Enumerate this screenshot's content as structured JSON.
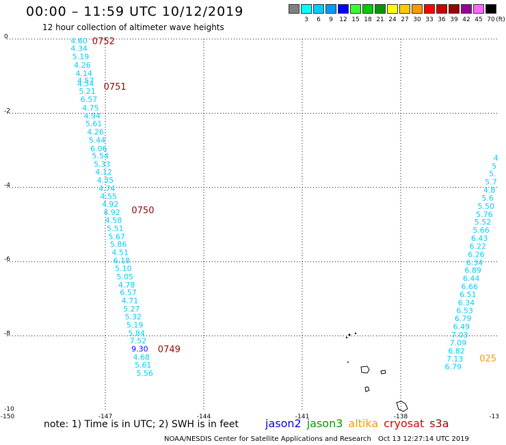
{
  "header": {
    "title": "00:00 – 11:59 UTC 10/12/2019",
    "subtitle": "12 hour collection of altimeter wave heights"
  },
  "colorbar": {
    "swatches": [
      {
        "label": "",
        "color": "#808080"
      },
      {
        "label": "3",
        "color": "#00ffff"
      },
      {
        "label": "6",
        "color": "#00ccff"
      },
      {
        "label": "9",
        "color": "#0099ff"
      },
      {
        "label": "12",
        "color": "#0000ff"
      },
      {
        "label": "15",
        "color": "#33ff33"
      },
      {
        "label": "18",
        "color": "#00cc00"
      },
      {
        "label": "21",
        "color": "#009900"
      },
      {
        "label": "24",
        "color": "#ffff00"
      },
      {
        "label": "27",
        "color": "#ffcc00"
      },
      {
        "label": "30",
        "color": "#ff9900"
      },
      {
        "label": "33",
        "color": "#ff0000"
      },
      {
        "label": "36",
        "color": "#cc0000"
      },
      {
        "label": "39",
        "color": "#990000"
      },
      {
        "label": "42",
        "color": "#990099"
      },
      {
        "label": "45",
        "color": "#ff66ff"
      },
      {
        "label": "70",
        "color": "#000000"
      }
    ],
    "unit": "(ft)"
  },
  "note": "note:  1) Time is in UTC;  2) SWH is in feet",
  "legend": [
    {
      "label": "jason2",
      "color": "#0000dd"
    },
    {
      "label": "jason3",
      "color": "#009900"
    },
    {
      "label": "altika",
      "color": "#ff9900"
    },
    {
      "label": "cryosat",
      "color": "#dd0000"
    },
    {
      "label": "s3a",
      "color": "#990000"
    }
  ],
  "credit": "NOAA/NESDIS Center for Satellite Applications and Research",
  "timestamp": "Oct 13 12:27:14 UTC 2019",
  "chart_data": {
    "type": "scatter",
    "title": "00:00 – 11:59 UTC 10/12/2019",
    "subtitle": "12 hour collection of altimeter wave heights",
    "xlabel": "",
    "ylabel": "",
    "xlim": [
      -150,
      -135
    ],
    "ylim": [
      -10,
      0
    ],
    "x_ticks": [
      "-150",
      "-147",
      "-144",
      "-141",
      "-138",
      "-13"
    ],
    "y_ticks": [
      "0",
      "-2",
      "-4",
      "-6",
      "-8",
      "-10"
    ],
    "grid": true,
    "series": [
      {
        "name": "s3a",
        "color": "#00ccff",
        "points": [
          {
            "x": -147.8,
            "y": -0.05,
            "label": "4.60"
          },
          {
            "x": -147.8,
            "y": -0.25,
            "label": "4.34"
          },
          {
            "x": -147.75,
            "y": -0.47,
            "label": "5.19"
          },
          {
            "x": -147.7,
            "y": -0.7,
            "label": "4.26"
          },
          {
            "x": -147.65,
            "y": -0.92,
            "label": "4.14"
          },
          {
            "x": -147.6,
            "y": -1.12,
            "label": "4.57"
          },
          {
            "x": -147.6,
            "y": -1.2,
            "label": "4.54"
          },
          {
            "x": -147.55,
            "y": -1.4,
            "label": "5.21"
          },
          {
            "x": -147.5,
            "y": -1.62,
            "label": "6.57"
          },
          {
            "x": -147.45,
            "y": -1.85,
            "label": "4.75"
          },
          {
            "x": -147.4,
            "y": -2.07,
            "label": "4.94"
          },
          {
            "x": -147.35,
            "y": -2.28,
            "label": "5.61"
          },
          {
            "x": -147.3,
            "y": -2.5,
            "label": "4.26"
          },
          {
            "x": -147.25,
            "y": -2.72,
            "label": "5.44"
          },
          {
            "x": -147.2,
            "y": -2.95,
            "label": "6.06"
          },
          {
            "x": -147.15,
            "y": -3.15,
            "label": "5.54"
          },
          {
            "x": -147.1,
            "y": -3.37,
            "label": "5.33"
          },
          {
            "x": -147.05,
            "y": -3.58,
            "label": "4.12"
          },
          {
            "x": -147.0,
            "y": -3.8,
            "label": "4.35"
          },
          {
            "x": -146.95,
            "y": -4.02,
            "label": "4.74"
          },
          {
            "x": -146.9,
            "y": -4.23,
            "label": "4.55"
          },
          {
            "x": -146.85,
            "y": -4.45,
            "label": "4.92"
          },
          {
            "x": -146.8,
            "y": -4.67,
            "label": "4.92"
          },
          {
            "x": -146.75,
            "y": -4.88,
            "label": "4.58"
          },
          {
            "x": -146.7,
            "y": -5.1,
            "label": "5.51"
          },
          {
            "x": -146.65,
            "y": -5.32,
            "label": "5.67"
          },
          {
            "x": -146.6,
            "y": -5.53,
            "label": "5.86"
          },
          {
            "x": -146.55,
            "y": -5.75,
            "label": "4.51"
          },
          {
            "x": -146.5,
            "y": -5.97,
            "label": "6.18"
          },
          {
            "x": -146.45,
            "y": -6.18,
            "label": "5.10"
          },
          {
            "x": -146.4,
            "y": -6.4,
            "label": "5.05"
          },
          {
            "x": -146.35,
            "y": -6.62,
            "label": "4.78"
          },
          {
            "x": -146.3,
            "y": -6.83,
            "label": "6.57"
          },
          {
            "x": -146.25,
            "y": -7.05,
            "label": "4.71"
          },
          {
            "x": -146.2,
            "y": -7.27,
            "label": "5.27"
          },
          {
            "x": -146.15,
            "y": -7.48,
            "label": "5.32"
          },
          {
            "x": -146.1,
            "y": -7.7,
            "label": "5.19"
          },
          {
            "x": -146.05,
            "y": -7.92,
            "label": "5.84"
          },
          {
            "x": -146.0,
            "y": -8.13,
            "label": "7.52"
          },
          {
            "x": -145.95,
            "y": -8.35,
            "label": "9.30",
            "color": "#0000ff"
          },
          {
            "x": -145.9,
            "y": -8.57,
            "label": "4.68"
          },
          {
            "x": -145.85,
            "y": -8.78,
            "label": "5.61"
          },
          {
            "x": -145.8,
            "y": -9.0,
            "label": "5.56"
          },
          {
            "x": -135.1,
            "y": -3.2,
            "label": "4"
          },
          {
            "x": -135.15,
            "y": -3.42,
            "label": "5"
          },
          {
            "x": -135.2,
            "y": -3.63,
            "label": "5."
          },
          {
            "x": -135.25,
            "y": -3.85,
            "label": "5.7"
          },
          {
            "x": -135.3,
            "y": -4.07,
            "label": "4.8"
          },
          {
            "x": -135.35,
            "y": -4.28,
            "label": "5.6"
          },
          {
            "x": -135.4,
            "y": -4.5,
            "label": "5.50"
          },
          {
            "x": -135.45,
            "y": -4.72,
            "label": "5.76"
          },
          {
            "x": -135.5,
            "y": -4.93,
            "label": "5.52"
          },
          {
            "x": -135.55,
            "y": -5.15,
            "label": "5.66"
          },
          {
            "x": -135.6,
            "y": -5.37,
            "label": "6.43"
          },
          {
            "x": -135.65,
            "y": -5.58,
            "label": "6.22"
          },
          {
            "x": -135.7,
            "y": -5.8,
            "label": "6.26"
          },
          {
            "x": -135.75,
            "y": -6.02,
            "label": "6.34"
          },
          {
            "x": -135.8,
            "y": -6.23,
            "label": "6.89"
          },
          {
            "x": -135.85,
            "y": -6.45,
            "label": "6.44"
          },
          {
            "x": -135.9,
            "y": -6.67,
            "label": "6.66"
          },
          {
            "x": -135.95,
            "y": -6.88,
            "label": "6.51"
          },
          {
            "x": -136.0,
            "y": -7.1,
            "label": "6.34"
          },
          {
            "x": -136.05,
            "y": -7.32,
            "label": "6.53"
          },
          {
            "x": -136.1,
            "y": -7.53,
            "label": "6.79"
          },
          {
            "x": -136.15,
            "y": -7.75,
            "label": "6.49"
          },
          {
            "x": -136.2,
            "y": -7.97,
            "label": "7.03"
          },
          {
            "x": -136.25,
            "y": -8.18,
            "label": "7.09"
          },
          {
            "x": -136.3,
            "y": -8.4,
            "label": "6.82"
          },
          {
            "x": -136.35,
            "y": -8.62,
            "label": "7.13"
          },
          {
            "x": -136.4,
            "y": -8.83,
            "label": "6.79"
          }
        ]
      }
    ],
    "time_labels": [
      {
        "x": -147.4,
        "y": -0.05,
        "label": "0752",
        "color": "#990000"
      },
      {
        "x": -147.05,
        "y": -1.27,
        "label": "0751",
        "color": "#990000"
      },
      {
        "x": -146.2,
        "y": -4.6,
        "label": "0750",
        "color": "#990000"
      },
      {
        "x": -145.4,
        "y": -8.35,
        "label": "0749",
        "color": "#990000"
      },
      {
        "x": -135.6,
        "y": -8.6,
        "label": "025",
        "color": "#ff9900"
      }
    ]
  }
}
